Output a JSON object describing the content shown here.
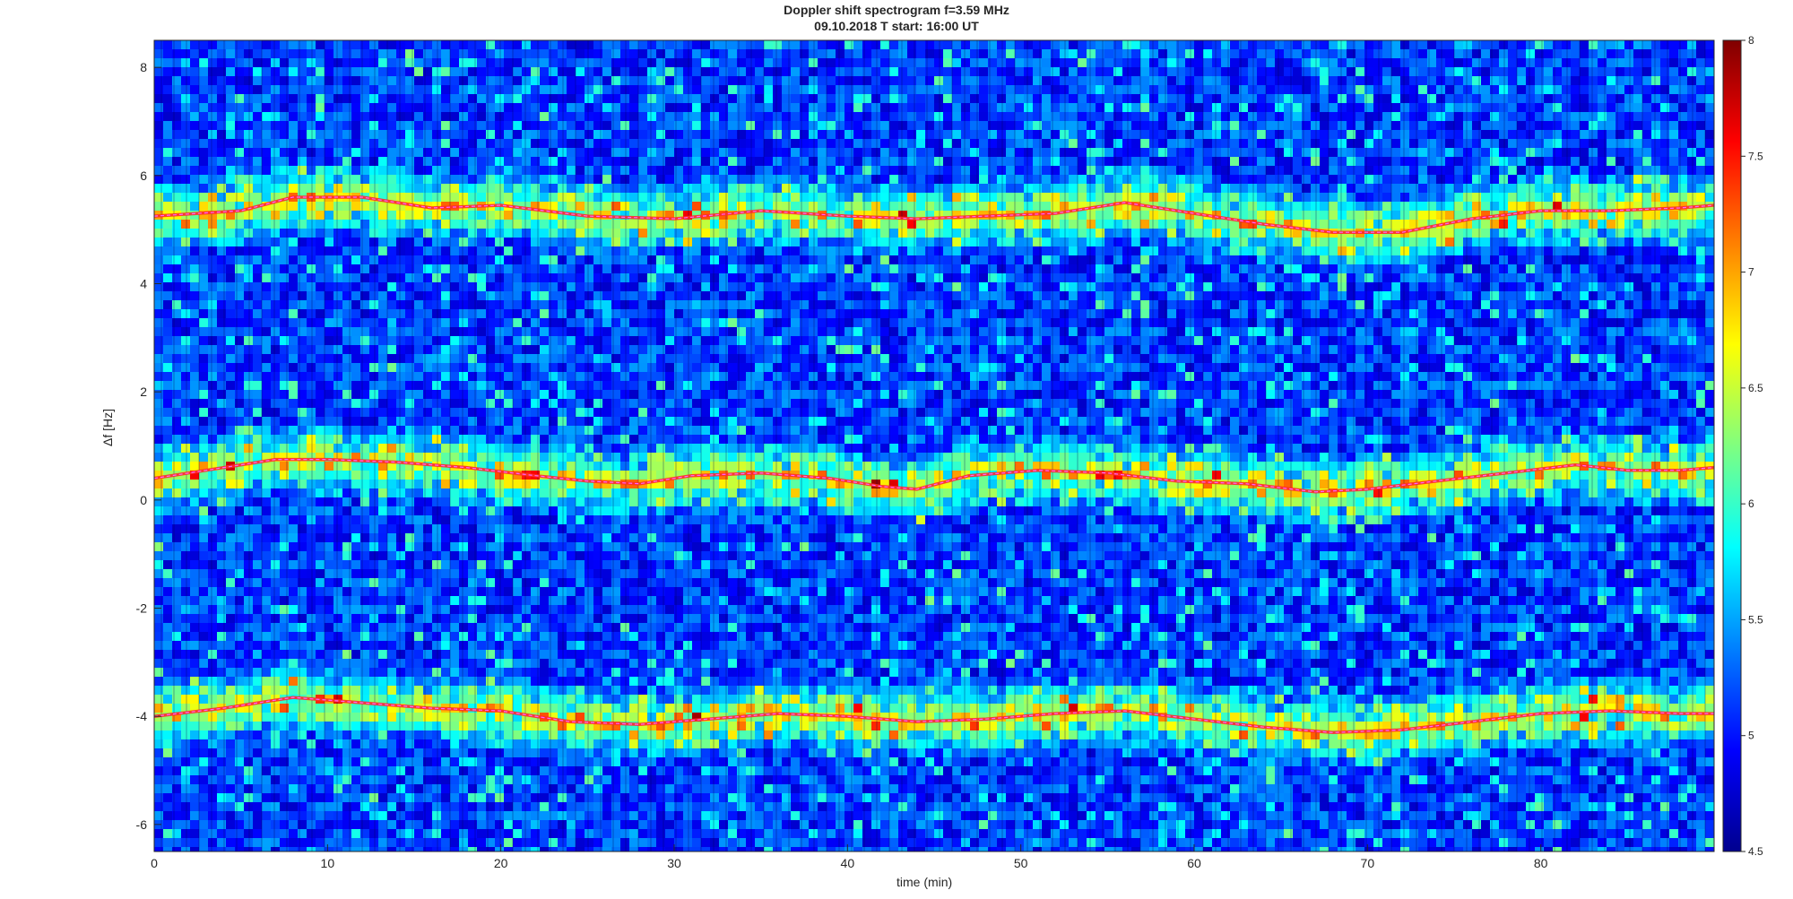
{
  "chart_data": {
    "type": "heatmap",
    "title": "Doppler shift spectrogram f=3.59 MHz",
    "subtitle": "09.10.2018   T start: 16:00 UT",
    "xlabel": "time (min)",
    "ylabel": "Δf [Hz]",
    "xlim": [
      0,
      90
    ],
    "ylim": [
      -6.5,
      8.5
    ],
    "x_ticks": [
      0,
      10,
      20,
      30,
      40,
      50,
      60,
      70,
      80
    ],
    "y_ticks": [
      -6,
      -4,
      -2,
      0,
      2,
      4,
      6,
      8
    ],
    "colorbar": {
      "colormap": "jet",
      "clim": [
        4.5,
        8
      ],
      "ticks": [
        "4.5",
        "5",
        "5.5",
        "6",
        "6.5",
        "7",
        "7.5",
        "8"
      ]
    },
    "grid": false,
    "bands": [
      {
        "x": [
          0,
          5,
          8,
          12,
          16,
          20,
          25,
          30,
          35,
          40,
          44,
          48,
          52,
          56,
          60,
          64,
          68,
          72,
          76,
          80,
          84,
          88,
          90
        ],
        "y": [
          5.25,
          5.35,
          5.6,
          5.6,
          5.4,
          5.45,
          5.25,
          5.2,
          5.35,
          5.25,
          5.2,
          5.25,
          5.3,
          5.5,
          5.3,
          5.1,
          4.95,
          4.95,
          5.2,
          5.35,
          5.35,
          5.4,
          5.45
        ]
      },
      {
        "x": [
          0,
          3,
          7,
          10,
          14,
          18,
          22,
          25,
          28,
          31,
          35,
          39,
          42,
          44,
          47,
          51,
          55,
          59,
          63,
          67,
          70,
          74,
          78,
          82,
          85,
          88,
          90
        ],
        "y": [
          0.4,
          0.55,
          0.75,
          0.75,
          0.7,
          0.6,
          0.45,
          0.35,
          0.3,
          0.45,
          0.5,
          0.4,
          0.25,
          0.2,
          0.45,
          0.55,
          0.5,
          0.35,
          0.3,
          0.15,
          0.2,
          0.35,
          0.5,
          0.65,
          0.55,
          0.55,
          0.6
        ]
      },
      {
        "x": [
          0,
          4,
          8,
          12,
          16,
          20,
          24,
          28,
          32,
          36,
          40,
          44,
          48,
          52,
          56,
          60,
          64,
          68,
          72,
          76,
          80,
          84,
          88,
          90
        ],
        "y": [
          -4.0,
          -3.85,
          -3.65,
          -3.75,
          -3.85,
          -3.9,
          -4.1,
          -4.15,
          -4.05,
          -3.95,
          -4.0,
          -4.1,
          -4.05,
          -3.95,
          -3.9,
          -4.05,
          -4.2,
          -4.3,
          -4.25,
          -4.1,
          -3.95,
          -3.9,
          -3.95,
          -3.95
        ]
      }
    ]
  }
}
